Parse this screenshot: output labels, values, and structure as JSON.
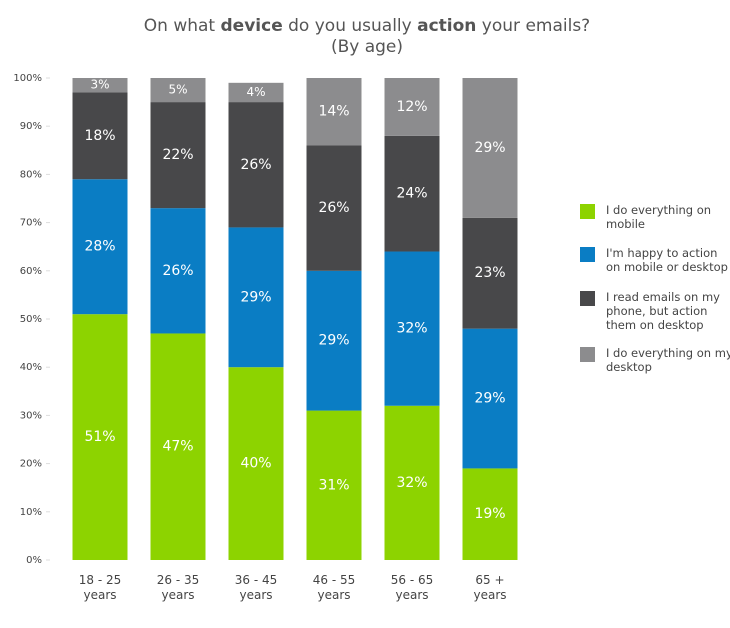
{
  "chart_data": {
    "type": "stacked_bar",
    "title_segments": [
      {
        "text": "On what ",
        "bold": false
      },
      {
        "text": "device",
        "bold": true
      },
      {
        "text": " do you usually ",
        "bold": false
      },
      {
        "text": "action",
        "bold": true
      },
      {
        "text": " your emails?",
        "bold": false
      }
    ],
    "subtitle": "(By age)",
    "categories": [
      "18 - 25 years",
      "26 - 35 years",
      "36 - 45 years",
      "46 - 55 years",
      "56 - 65 years",
      "65 + years"
    ],
    "series": [
      {
        "name": "I do everything on mobile",
        "color": "#8dd300",
        "values": [
          51,
          47,
          40,
          31,
          32,
          19
        ],
        "value_labels": [
          "51%",
          "47%",
          "40%",
          "31%",
          "32%",
          "19%"
        ]
      },
      {
        "name": "I'm happy to action on mobile or desktop",
        "color": "#0a7dc4",
        "values": [
          28,
          26,
          29,
          29,
          32,
          29
        ],
        "value_labels": [
          "28%",
          "26%",
          "29%",
          "29%",
          "32%",
          "29%"
        ]
      },
      {
        "name": "I read emails on my phone, but action them on desktop",
        "color": "#48484a",
        "values": [
          18,
          22,
          26,
          26,
          24,
          23
        ],
        "value_labels": [
          "18%",
          "22%",
          "26%",
          "26%",
          "24%",
          "23%"
        ]
      },
      {
        "name": "I do everything on my desktop",
        "color": "#8c8c8e",
        "values": [
          3,
          5,
          4,
          14,
          12,
          29
        ],
        "value_labels": [
          "3%",
          "5%",
          "4%",
          "14%",
          "12%",
          "29%"
        ]
      }
    ],
    "ylim": [
      0,
      100
    ],
    "yticks": [
      {
        "value": 0,
        "label": "0%"
      },
      {
        "value": 10,
        "label": "10%"
      },
      {
        "value": 20,
        "label": "20%"
      },
      {
        "value": 30,
        "label": "30%"
      },
      {
        "value": 40,
        "label": "40%"
      },
      {
        "value": 50,
        "label": "50%"
      },
      {
        "value": 60,
        "label": "60%"
      },
      {
        "value": 70,
        "label": "70%"
      },
      {
        "value": 80,
        "label": "80%"
      },
      {
        "value": 90,
        "label": "90%"
      },
      {
        "value": 100,
        "label": "100%"
      }
    ],
    "legend": "right"
  }
}
